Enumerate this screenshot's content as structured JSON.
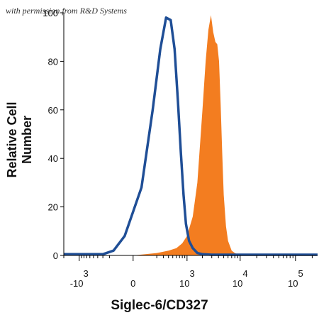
{
  "watermark": "with permission from R&D Systems",
  "chart_data": {
    "type": "area",
    "xlabel": "Siglec-6/CD327",
    "ylabel": "Relative Cell Number",
    "xscale": "biexponential",
    "xlim": [
      -2000,
      250000
    ],
    "ylim": [
      0,
      100
    ],
    "yticks": [
      0,
      20,
      40,
      60,
      80,
      100
    ],
    "xticks": [
      {
        "value": -1000,
        "base": "-10",
        "exp": "3"
      },
      {
        "value": 0,
        "base": "0",
        "exp": ""
      },
      {
        "value": 1000,
        "base": "10",
        "exp": "3"
      },
      {
        "value": 10000,
        "base": "10",
        "exp": "4"
      },
      {
        "value": 100000,
        "base": "10",
        "exp": "5"
      }
    ],
    "grid": false,
    "series": [
      {
        "style": "filled",
        "color": "#F37D20",
        "x": [
          0,
          200,
          400,
          600,
          800,
          1000,
          1300,
          1600,
          2000,
          2300,
          2600,
          2900,
          3200,
          3500,
          3800,
          4100,
          4400,
          4700,
          5000,
          5500,
          6000,
          7000,
          8000,
          9000,
          10000,
          12000
        ],
        "y": [
          0,
          1,
          2,
          3,
          5,
          8,
          16,
          30,
          60,
          80,
          93,
          99,
          92,
          88,
          87,
          80,
          62,
          42,
          25,
          12,
          6,
          2,
          1,
          0.5,
          0,
          0
        ]
      },
      {
        "style": "line",
        "color": "#1F4E96",
        "x": [
          -2000,
          -300,
          -150,
          -50,
          50,
          150,
          250,
          350,
          450,
          550,
          650,
          750,
          850,
          950,
          1100,
          1300,
          1600,
          2000,
          3000,
          250000
        ],
        "y": [
          0.5,
          0.5,
          2,
          8,
          28,
          60,
          85,
          98,
          97,
          85,
          63,
          42,
          25,
          13,
          6,
          3,
          1,
          0.5,
          0.3,
          0.3
        ]
      }
    ]
  }
}
